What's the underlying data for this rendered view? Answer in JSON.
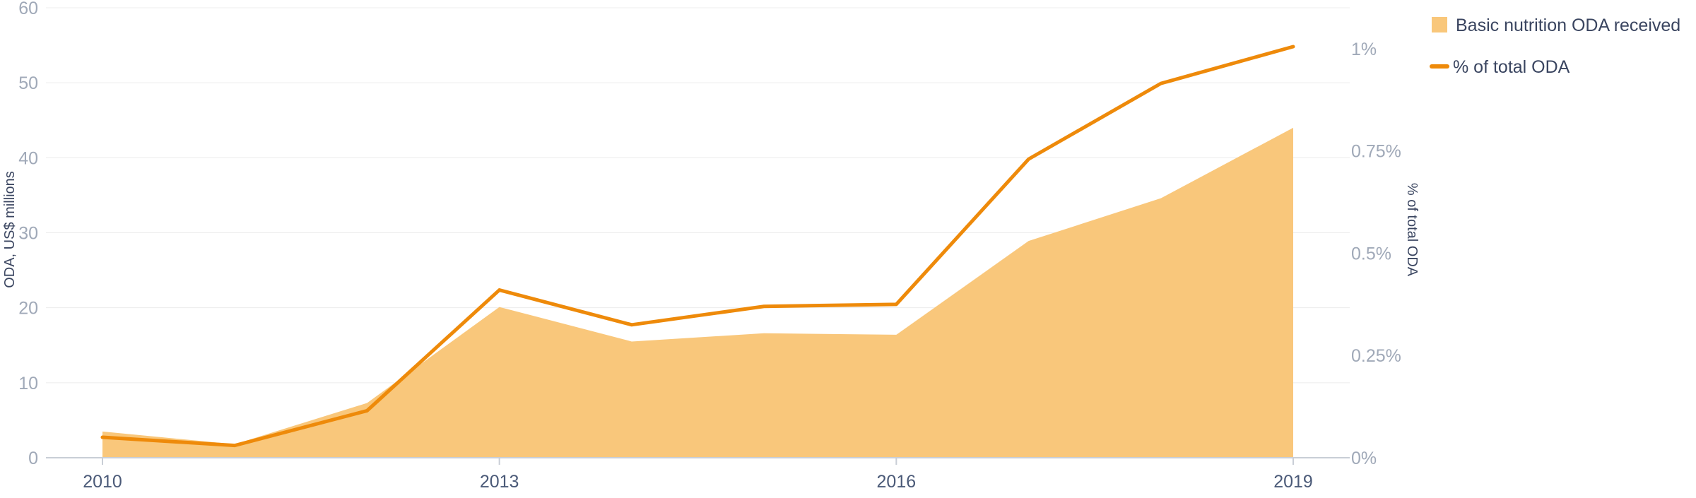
{
  "chart_data": {
    "type": "area",
    "title": "",
    "xlabel": "",
    "ylabel": "ODA, US$ millions",
    "y2label": "% of total ODA",
    "x": [
      2010,
      2011,
      2012,
      2013,
      2014,
      2015,
      2016,
      2017,
      2018,
      2019
    ],
    "x_ticks": [
      2010,
      2013,
      2016,
      2019
    ],
    "x_tick_labels": [
      "2010",
      "2013",
      "2016",
      "2019"
    ],
    "ylim": [
      0,
      60
    ],
    "y_ticks": [
      0,
      10,
      20,
      30,
      40,
      50,
      60
    ],
    "y_tick_labels": [
      "0",
      "10",
      "20",
      "30",
      "40",
      "50",
      "60"
    ],
    "y2lim": [
      0,
      1.1
    ],
    "y2_ticks": [
      0,
      0.25,
      0.5,
      0.75,
      1
    ],
    "y2_tick_labels": [
      "0%",
      "0.25%",
      "0.5%",
      "0.75%",
      "1%"
    ],
    "grid": true,
    "legend_position": "top-right",
    "series": [
      {
        "name": "Basic nutrition ODA received",
        "type": "area",
        "axis": "left",
        "color": "#f9c77b",
        "values": [
          3.5,
          1.8,
          7.3,
          20.1,
          15.5,
          16.6,
          16.4,
          28.9,
          34.6,
          44.0
        ]
      },
      {
        "name": "% of total ODA",
        "type": "line",
        "axis": "right",
        "color": "#ee8a0a",
        "values": [
          0.05,
          0.03,
          0.115,
          0.41,
          0.325,
          0.37,
          0.375,
          0.73,
          0.915,
          1.005
        ]
      }
    ]
  },
  "colors": {
    "area": "#f9c77b",
    "line": "#ee8a0a",
    "grid": "#ececec",
    "axis": "#c9ced6",
    "tick_text": "#a0a9b8",
    "year_text": "#4b5a78",
    "label_text": "#3a4560",
    "legend_text": "#3a4560"
  }
}
